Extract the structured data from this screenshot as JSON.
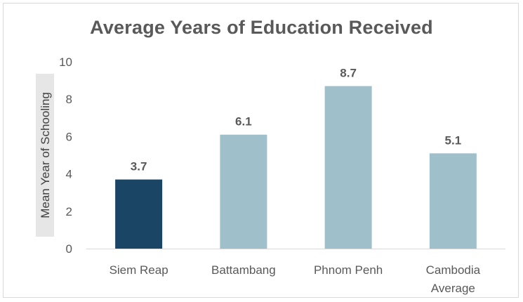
{
  "chart_data": {
    "type": "bar",
    "title": "Average Years of Education Received",
    "xlabel": "",
    "ylabel": "Mean Year of Schooling",
    "categories": [
      [
        "Siem Reap"
      ],
      [
        "Battambang"
      ],
      [
        "Phnom Penh"
      ],
      [
        "Cambodia",
        "Average"
      ]
    ],
    "values": [
      3.7,
      6.1,
      8.7,
      5.1
    ],
    "data_labels": [
      "3.7",
      "6.1",
      "8.7",
      "5.1"
    ],
    "bar_colors": [
      "#1b4564",
      "#9fc0cb",
      "#9fc0cb",
      "#9fc0cb"
    ],
    "ylim": [
      0,
      10
    ],
    "yticks": [
      0,
      2,
      4,
      6,
      8,
      10
    ],
    "grid": false,
    "legend": "none"
  },
  "colors": {
    "axis": "#d9d9d9",
    "text": "#595959",
    "ylabel_box": "#e6e6e6"
  }
}
